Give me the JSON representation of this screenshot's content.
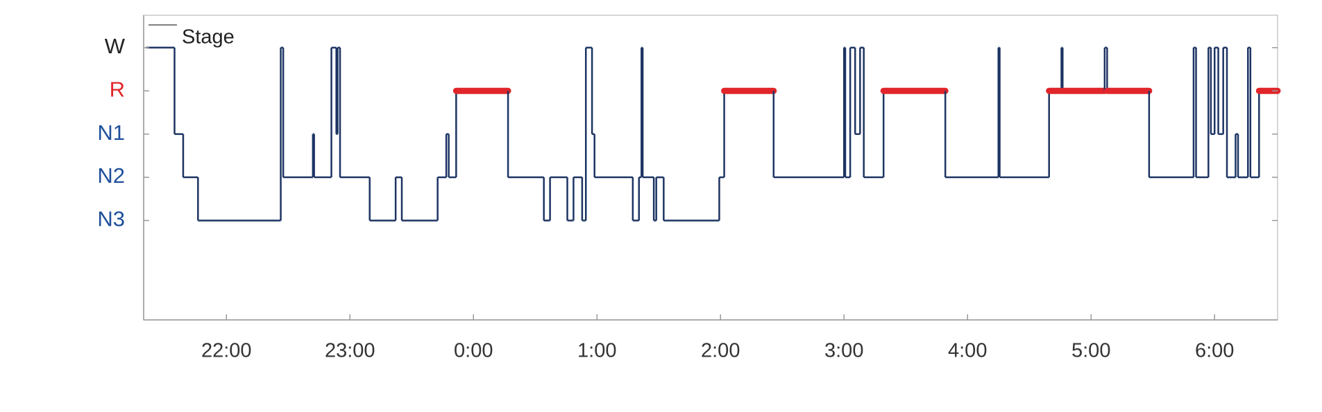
{
  "chart_data": {
    "type": "step",
    "x": [
      21.35,
      21.58,
      21.65,
      21.77,
      22.44,
      22.46,
      22.7,
      22.71,
      22.85,
      22.89,
      22.9,
      22.92,
      23.16,
      23.37,
      23.42,
      23.71,
      23.78,
      23.8,
      23.86,
      24.28,
      24.57,
      24.62,
      24.76,
      24.81,
      24.88,
      24.91,
      24.96,
      24.98,
      25.29,
      25.34,
      25.36,
      25.37,
      25.46,
      25.48,
      25.54,
      25.99,
      26.03,
      26.43,
      27.0,
      27.01,
      27.05,
      27.09,
      27.13,
      27.16,
      27.32,
      27.82,
      28.25,
      28.26,
      28.66,
      28.76,
      28.77,
      29.11,
      29.13,
      29.47,
      29.83,
      29.85,
      29.95,
      29.97,
      30.0,
      30.03,
      30.07,
      30.1,
      30.17,
      30.19,
      30.27,
      30.29,
      30.36
    ],
    "series": [
      {
        "name": "Stage",
        "color": "#1d3463",
        "values": [
          5,
          3,
          2,
          1,
          5,
          2,
          3,
          2,
          5,
          3,
          5,
          2,
          1,
          2,
          1,
          2,
          3,
          2,
          4,
          2,
          1,
          2,
          1,
          2,
          1,
          5,
          3,
          2,
          1,
          2,
          5,
          2,
          1,
          2,
          1,
          2,
          4,
          2,
          5,
          2,
          5,
          3,
          5,
          2,
          4,
          2,
          5,
          2,
          4,
          5,
          4,
          5,
          4,
          2,
          5,
          2,
          5,
          3,
          5,
          3,
          5,
          2,
          3,
          2,
          5,
          2,
          4
        ]
      }
    ],
    "xlim": [
      21.33,
      30.51
    ],
    "xticks": [
      {
        "value": 22,
        "label": "22:00"
      },
      {
        "value": 23,
        "label": "23:00"
      },
      {
        "value": 24,
        "label": "0:00"
      },
      {
        "value": 25,
        "label": "1:00"
      },
      {
        "value": 26,
        "label": "2:00"
      },
      {
        "value": 27,
        "label": "3:00"
      },
      {
        "value": 28,
        "label": "4:00"
      },
      {
        "value": 29,
        "label": "5:00"
      },
      {
        "value": 30,
        "label": "6:00"
      }
    ],
    "ylim": [
      -1.3,
      5.75
    ],
    "yticks": [
      {
        "value": 5,
        "label": "W",
        "color": "#222222"
      },
      {
        "value": 4,
        "label": "R",
        "color": "#e0262b",
        "emphasis": true
      },
      {
        "value": 3,
        "label": "N1",
        "color": "#1e4f9a"
      },
      {
        "value": 2,
        "label": "N2",
        "color": "#1e4f9a"
      },
      {
        "value": 1,
        "label": "N3",
        "color": "#1e4f9a"
      }
    ]
  }
}
